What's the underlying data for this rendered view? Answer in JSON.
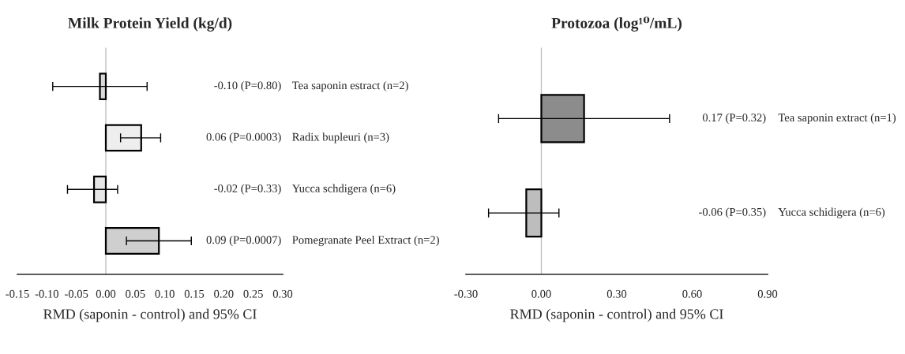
{
  "chart_data": [
    {
      "type": "bar",
      "orientation": "horizontal",
      "title": "Milk Protein Yield (kg/d)",
      "xlabel": "RMD (saponin - control) and 95% CI",
      "categories": [
        "Tea saponin estract (n=2)",
        "Radix bupleuri (n=3)",
        "Yucca schdigera (n=6)",
        "Pomegranate Peel Extract (n=2)"
      ],
      "values": [
        -0.01,
        0.06,
        -0.02,
        0.09
      ],
      "errors": [
        [
          -0.09,
          0.07
        ],
        [
          0.025,
          0.093
        ],
        [
          -0.065,
          0.02
        ],
        [
          0.035,
          0.145
        ]
      ],
      "annotations": [
        "-0.10 (P=0.80)",
        "0.06 (P=0.0003)",
        "-0.02 (P=0.33)",
        "0.09 (P=0.0007)"
      ],
      "colors": [
        "#d9d9d9",
        "#eeeeee",
        "#e6e6e6",
        "#cfcfcf"
      ],
      "ref_lines": [
        {
          "axis": "x",
          "value": 0,
          "color": "#bfbfbf"
        }
      ],
      "xlim": [
        -0.15,
        0.3
      ],
      "xticks": [
        {
          "value": -0.15,
          "label": "-0.15"
        },
        {
          "value": -0.1,
          "label": "-0.10"
        },
        {
          "value": -0.05,
          "label": "-0.05"
        },
        {
          "value": 0,
          "label": "0.00"
        },
        {
          "value": 0.05,
          "label": "0.05"
        },
        {
          "value": 0.1,
          "label": "0.10"
        },
        {
          "value": 0.15,
          "label": "0.15"
        },
        {
          "value": 0.2,
          "label": "0.20"
        },
        {
          "value": 0.25,
          "label": "0.25"
        },
        {
          "value": 0.3,
          "label": "0.30"
        }
      ],
      "grid": false,
      "legend": false
    },
    {
      "type": "bar",
      "orientation": "horizontal",
      "title": "Protozoa (log¹⁰/mL)",
      "xlabel": "RMD (saponin - control) and 95% CI",
      "categories": [
        "Tea saponin extract (n=1)",
        "Yucca schidigera (n=6)"
      ],
      "values": [
        0.17,
        -0.06
      ],
      "errors": [
        [
          -0.17,
          0.51
        ],
        [
          -0.21,
          0.07
        ]
      ],
      "annotations": [
        "0.17 (P=0.32)",
        "-0.06 (P=0.35)"
      ],
      "colors": [
        "#8c8c8c",
        "#bdbdbd"
      ],
      "ref_lines": [
        {
          "axis": "x",
          "value": 0,
          "color": "#bfbfbf"
        }
      ],
      "xlim": [
        -0.3,
        0.9
      ],
      "xticks": [
        {
          "value": -0.3,
          "label": "-0.30"
        },
        {
          "value": 0,
          "label": "0.00"
        },
        {
          "value": 0.3,
          "label": "0.30"
        },
        {
          "value": 0.6,
          "label": "0.60"
        },
        {
          "value": 0.9,
          "label": "0.90"
        }
      ],
      "grid": false,
      "legend": false
    }
  ]
}
